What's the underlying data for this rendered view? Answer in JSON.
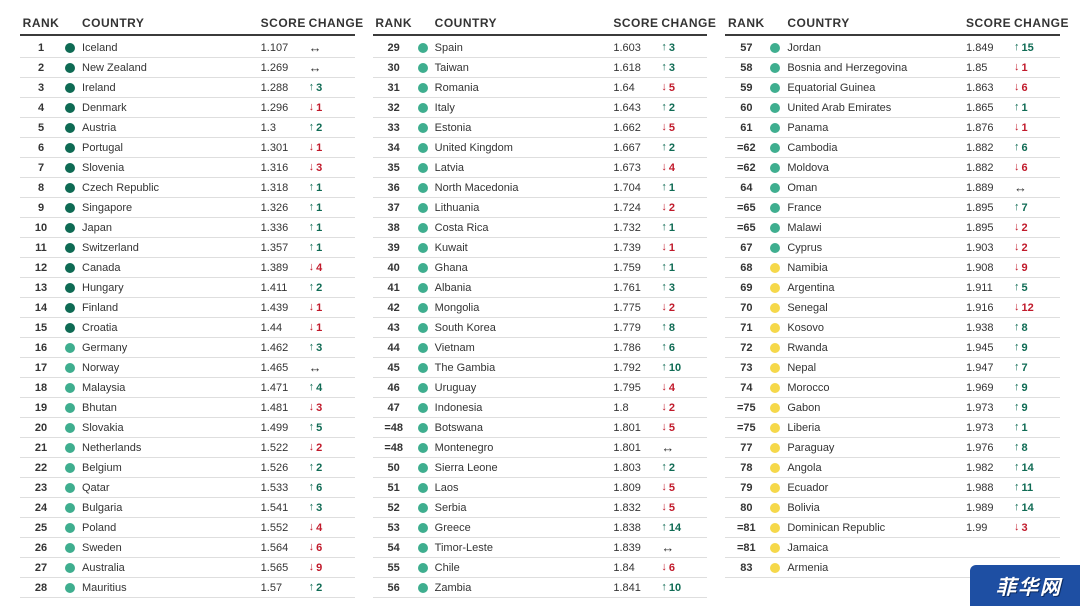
{
  "headers": {
    "rank": "RANK",
    "country": "COUNTRY",
    "score": "SCORE",
    "change": "CHANGE"
  },
  "dotColors": {
    "dark": "#0f6b54",
    "mid": "#3fae8f",
    "light": "#f5d84a"
  },
  "arrowColors": {
    "up": "#0f6b54",
    "down": "#c11a2b",
    "same": "#343434"
  },
  "watermark": "菲华网",
  "columns": [
    [
      {
        "rank": "1",
        "country": "Iceland",
        "score": "1.107",
        "dir": "same",
        "delta": "",
        "dot": "dark"
      },
      {
        "rank": "2",
        "country": "New Zealand",
        "score": "1.269",
        "dir": "same",
        "delta": "",
        "dot": "dark"
      },
      {
        "rank": "3",
        "country": "Ireland",
        "score": "1.288",
        "dir": "up",
        "delta": "3",
        "dot": "dark"
      },
      {
        "rank": "4",
        "country": "Denmark",
        "score": "1.296",
        "dir": "down",
        "delta": "1",
        "dot": "dark"
      },
      {
        "rank": "5",
        "country": "Austria",
        "score": "1.3",
        "dir": "up",
        "delta": "2",
        "dot": "dark"
      },
      {
        "rank": "6",
        "country": "Portugal",
        "score": "1.301",
        "dir": "down",
        "delta": "1",
        "dot": "dark"
      },
      {
        "rank": "7",
        "country": "Slovenia",
        "score": "1.316",
        "dir": "down",
        "delta": "3",
        "dot": "dark"
      },
      {
        "rank": "8",
        "country": "Czech Republic",
        "score": "1.318",
        "dir": "up",
        "delta": "1",
        "dot": "dark"
      },
      {
        "rank": "9",
        "country": "Singapore",
        "score": "1.326",
        "dir": "up",
        "delta": "1",
        "dot": "dark"
      },
      {
        "rank": "10",
        "country": "Japan",
        "score": "1.336",
        "dir": "up",
        "delta": "1",
        "dot": "dark"
      },
      {
        "rank": "11",
        "country": "Switzerland",
        "score": "1.357",
        "dir": "up",
        "delta": "1",
        "dot": "dark"
      },
      {
        "rank": "12",
        "country": "Canada",
        "score": "1.389",
        "dir": "down",
        "delta": "4",
        "dot": "dark"
      },
      {
        "rank": "13",
        "country": "Hungary",
        "score": "1.411",
        "dir": "up",
        "delta": "2",
        "dot": "dark"
      },
      {
        "rank": "14",
        "country": "Finland",
        "score": "1.439",
        "dir": "down",
        "delta": "1",
        "dot": "dark"
      },
      {
        "rank": "15",
        "country": "Croatia",
        "score": "1.44",
        "dir": "down",
        "delta": "1",
        "dot": "dark"
      },
      {
        "rank": "16",
        "country": "Germany",
        "score": "1.462",
        "dir": "up",
        "delta": "3",
        "dot": "mid"
      },
      {
        "rank": "17",
        "country": "Norway",
        "score": "1.465",
        "dir": "same",
        "delta": "",
        "dot": "mid"
      },
      {
        "rank": "18",
        "country": "Malaysia",
        "score": "1.471",
        "dir": "up",
        "delta": "4",
        "dot": "mid"
      },
      {
        "rank": "19",
        "country": "Bhutan",
        "score": "1.481",
        "dir": "down",
        "delta": "3",
        "dot": "mid"
      },
      {
        "rank": "20",
        "country": "Slovakia",
        "score": "1.499",
        "dir": "up",
        "delta": "5",
        "dot": "mid"
      },
      {
        "rank": "21",
        "country": "Netherlands",
        "score": "1.522",
        "dir": "down",
        "delta": "2",
        "dot": "mid"
      },
      {
        "rank": "22",
        "country": "Belgium",
        "score": "1.526",
        "dir": "up",
        "delta": "2",
        "dot": "mid"
      },
      {
        "rank": "23",
        "country": "Qatar",
        "score": "1.533",
        "dir": "up",
        "delta": "6",
        "dot": "mid"
      },
      {
        "rank": "24",
        "country": "Bulgaria",
        "score": "1.541",
        "dir": "up",
        "delta": "3",
        "dot": "mid"
      },
      {
        "rank": "25",
        "country": "Poland",
        "score": "1.552",
        "dir": "down",
        "delta": "4",
        "dot": "mid"
      },
      {
        "rank": "26",
        "country": "Sweden",
        "score": "1.564",
        "dir": "down",
        "delta": "6",
        "dot": "mid"
      },
      {
        "rank": "27",
        "country": "Australia",
        "score": "1.565",
        "dir": "down",
        "delta": "9",
        "dot": "mid"
      },
      {
        "rank": "28",
        "country": "Mauritius",
        "score": "1.57",
        "dir": "up",
        "delta": "2",
        "dot": "mid"
      }
    ],
    [
      {
        "rank": "29",
        "country": "Spain",
        "score": "1.603",
        "dir": "up",
        "delta": "3",
        "dot": "mid"
      },
      {
        "rank": "30",
        "country": "Taiwan",
        "score": "1.618",
        "dir": "up",
        "delta": "3",
        "dot": "mid"
      },
      {
        "rank": "31",
        "country": "Romania",
        "score": "1.64",
        "dir": "down",
        "delta": "5",
        "dot": "mid"
      },
      {
        "rank": "32",
        "country": "Italy",
        "score": "1.643",
        "dir": "up",
        "delta": "2",
        "dot": "mid"
      },
      {
        "rank": "33",
        "country": "Estonia",
        "score": "1.662",
        "dir": "down",
        "delta": "5",
        "dot": "mid"
      },
      {
        "rank": "34",
        "country": "United Kingdom",
        "score": "1.667",
        "dir": "up",
        "delta": "2",
        "dot": "mid"
      },
      {
        "rank": "35",
        "country": "Latvia",
        "score": "1.673",
        "dir": "down",
        "delta": "4",
        "dot": "mid"
      },
      {
        "rank": "36",
        "country": "North Macedonia",
        "score": "1.704",
        "dir": "up",
        "delta": "1",
        "dot": "mid"
      },
      {
        "rank": "37",
        "country": "Lithuania",
        "score": "1.724",
        "dir": "down",
        "delta": "2",
        "dot": "mid"
      },
      {
        "rank": "38",
        "country": "Costa Rica",
        "score": "1.732",
        "dir": "up",
        "delta": "1",
        "dot": "mid"
      },
      {
        "rank": "39",
        "country": "Kuwait",
        "score": "1.739",
        "dir": "down",
        "delta": "1",
        "dot": "mid"
      },
      {
        "rank": "40",
        "country": "Ghana",
        "score": "1.759",
        "dir": "up",
        "delta": "1",
        "dot": "mid"
      },
      {
        "rank": "41",
        "country": "Albania",
        "score": "1.761",
        "dir": "up",
        "delta": "3",
        "dot": "mid"
      },
      {
        "rank": "42",
        "country": "Mongolia",
        "score": "1.775",
        "dir": "down",
        "delta": "2",
        "dot": "mid"
      },
      {
        "rank": "43",
        "country": "South Korea",
        "score": "1.779",
        "dir": "up",
        "delta": "8",
        "dot": "mid"
      },
      {
        "rank": "44",
        "country": "Vietnam",
        "score": "1.786",
        "dir": "up",
        "delta": "6",
        "dot": "mid"
      },
      {
        "rank": "45",
        "country": "The Gambia",
        "score": "1.792",
        "dir": "up",
        "delta": "10",
        "dot": "mid"
      },
      {
        "rank": "46",
        "country": "Uruguay",
        "score": "1.795",
        "dir": "down",
        "delta": "4",
        "dot": "mid"
      },
      {
        "rank": "47",
        "country": "Indonesia",
        "score": "1.8",
        "dir": "down",
        "delta": "2",
        "dot": "mid"
      },
      {
        "rank": "=48",
        "country": "Botswana",
        "score": "1.801",
        "dir": "down",
        "delta": "5",
        "dot": "mid"
      },
      {
        "rank": "=48",
        "country": "Montenegro",
        "score": "1.801",
        "dir": "same",
        "delta": "",
        "dot": "mid"
      },
      {
        "rank": "50",
        "country": "Sierra Leone",
        "score": "1.803",
        "dir": "up",
        "delta": "2",
        "dot": "mid"
      },
      {
        "rank": "51",
        "country": "Laos",
        "score": "1.809",
        "dir": "down",
        "delta": "5",
        "dot": "mid"
      },
      {
        "rank": "52",
        "country": "Serbia",
        "score": "1.832",
        "dir": "down",
        "delta": "5",
        "dot": "mid"
      },
      {
        "rank": "53",
        "country": "Greece",
        "score": "1.838",
        "dir": "up",
        "delta": "14",
        "dot": "mid"
      },
      {
        "rank": "54",
        "country": "Timor-Leste",
        "score": "1.839",
        "dir": "same",
        "delta": "",
        "dot": "mid"
      },
      {
        "rank": "55",
        "country": "Chile",
        "score": "1.84",
        "dir": "down",
        "delta": "6",
        "dot": "mid"
      },
      {
        "rank": "56",
        "country": "Zambia",
        "score": "1.841",
        "dir": "up",
        "delta": "10",
        "dot": "mid"
      }
    ],
    [
      {
        "rank": "57",
        "country": "Jordan",
        "score": "1.849",
        "dir": "up",
        "delta": "15",
        "dot": "mid"
      },
      {
        "rank": "58",
        "country": "Bosnia and Herzegovina",
        "score": "1.85",
        "dir": "down",
        "delta": "1",
        "dot": "mid"
      },
      {
        "rank": "59",
        "country": "Equatorial Guinea",
        "score": "1.863",
        "dir": "down",
        "delta": "6",
        "dot": "mid"
      },
      {
        "rank": "60",
        "country": "United Arab Emirates",
        "score": "1.865",
        "dir": "up",
        "delta": "1",
        "dot": "mid"
      },
      {
        "rank": "61",
        "country": "Panama",
        "score": "1.876",
        "dir": "down",
        "delta": "1",
        "dot": "mid"
      },
      {
        "rank": "=62",
        "country": "Cambodia",
        "score": "1.882",
        "dir": "up",
        "delta": "6",
        "dot": "mid"
      },
      {
        "rank": "=62",
        "country": "Moldova",
        "score": "1.882",
        "dir": "down",
        "delta": "6",
        "dot": "mid"
      },
      {
        "rank": "64",
        "country": "Oman",
        "score": "1.889",
        "dir": "same",
        "delta": "",
        "dot": "mid"
      },
      {
        "rank": "=65",
        "country": "France",
        "score": "1.895",
        "dir": "up",
        "delta": "7",
        "dot": "mid"
      },
      {
        "rank": "=65",
        "country": "Malawi",
        "score": "1.895",
        "dir": "down",
        "delta": "2",
        "dot": "mid"
      },
      {
        "rank": "67",
        "country": "Cyprus",
        "score": "1.903",
        "dir": "down",
        "delta": "2",
        "dot": "mid"
      },
      {
        "rank": "68",
        "country": "Namibia",
        "score": "1.908",
        "dir": "down",
        "delta": "9",
        "dot": "light"
      },
      {
        "rank": "69",
        "country": "Argentina",
        "score": "1.911",
        "dir": "up",
        "delta": "5",
        "dot": "light"
      },
      {
        "rank": "70",
        "country": "Senegal",
        "score": "1.916",
        "dir": "down",
        "delta": "12",
        "dot": "light"
      },
      {
        "rank": "71",
        "country": "Kosovo",
        "score": "1.938",
        "dir": "up",
        "delta": "8",
        "dot": "light"
      },
      {
        "rank": "72",
        "country": "Rwanda",
        "score": "1.945",
        "dir": "up",
        "delta": "9",
        "dot": "light"
      },
      {
        "rank": "73",
        "country": "Nepal",
        "score": "1.947",
        "dir": "up",
        "delta": "7",
        "dot": "light"
      },
      {
        "rank": "74",
        "country": "Morocco",
        "score": "1.969",
        "dir": "up",
        "delta": "9",
        "dot": "light"
      },
      {
        "rank": "=75",
        "country": "Gabon",
        "score": "1.973",
        "dir": "up",
        "delta": "9",
        "dot": "light"
      },
      {
        "rank": "=75",
        "country": "Liberia",
        "score": "1.973",
        "dir": "up",
        "delta": "1",
        "dot": "light"
      },
      {
        "rank": "77",
        "country": "Paraguay",
        "score": "1.976",
        "dir": "up",
        "delta": "8",
        "dot": "light"
      },
      {
        "rank": "78",
        "country": "Angola",
        "score": "1.982",
        "dir": "up",
        "delta": "14",
        "dot": "light"
      },
      {
        "rank": "79",
        "country": "Ecuador",
        "score": "1.988",
        "dir": "up",
        "delta": "11",
        "dot": "light"
      },
      {
        "rank": "80",
        "country": "Bolivia",
        "score": "1.989",
        "dir": "up",
        "delta": "14",
        "dot": "light"
      },
      {
        "rank": "=81",
        "country": "Dominican Republic",
        "score": "1.99",
        "dir": "down",
        "delta": "3",
        "dot": "light"
      },
      {
        "rank": "=81",
        "country": "Jamaica",
        "score": "",
        "dir": "",
        "delta": "",
        "dot": "light"
      },
      {
        "rank": "83",
        "country": "Armenia",
        "score": "",
        "dir": "",
        "delta": "",
        "dot": "light"
      }
    ]
  ]
}
